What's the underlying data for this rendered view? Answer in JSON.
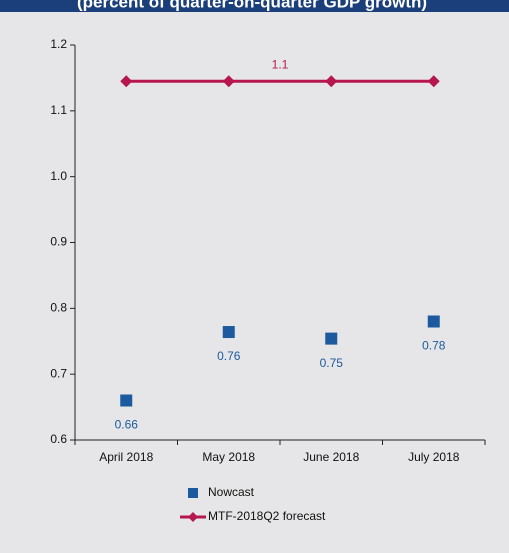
{
  "chart_data": {
    "type": "mixed",
    "title": "(percent of quarter-on-quarter GDP growth)",
    "categories": [
      "April 2018",
      "May 2018",
      "June 2018",
      "July 2018"
    ],
    "series": [
      {
        "name": "Nowcast",
        "color": "#1b5a9e",
        "marker": "square",
        "values": [
          0.66,
          0.764,
          0.754,
          0.78
        ],
        "value_labels": [
          "0.66",
          "0.76",
          "0.75",
          "0.78"
        ]
      },
      {
        "name": "MTF-2018Q2 forecast",
        "color": "#b5174e",
        "marker": "line-diamond",
        "values": [
          1.145,
          1.145,
          1.145,
          1.145
        ],
        "value_labels": [
          null,
          "1.1",
          null,
          null
        ]
      }
    ],
    "ylim": [
      0.6,
      1.2
    ],
    "yticks": [
      0.6,
      0.7,
      0.8,
      0.9,
      {
        "value": 1.0,
        "label": "1.0"
      },
      1.1,
      1.2
    ]
  }
}
